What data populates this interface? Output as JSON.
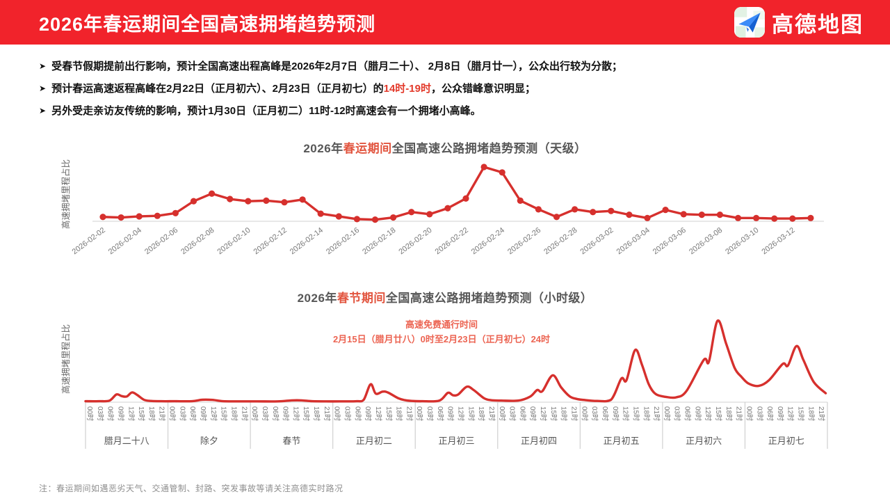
{
  "header": {
    "title": "2026年春运期间全国高速拥堵趋势预测",
    "brand": "高德地图"
  },
  "bullets": {
    "marker": "➤",
    "items": [
      {
        "pre": "受春节假期提前出行影响，预计全国高速出程高峰是2026年2月7日（腊月二十）、 2月8日（腊月廿一），公众出行较为分散；",
        "red": "",
        "post": ""
      },
      {
        "pre": "预计春运高速返程高峰在2月22日（正月初六）、2月23日（正月初七）的",
        "red": "14时-19时",
        "post": "，公众错峰意识明显；"
      },
      {
        "pre": "另外受走亲访友传统的影响，预计1月30日（正月初二）11时-12时高速会有一个拥堵小高峰。",
        "red": "",
        "post": ""
      }
    ]
  },
  "footer": {
    "note": "注：春运期间如遇恶劣天气、交通管制、封路、突发事故等请关注高德实时路况"
  },
  "colors": {
    "header_red": "#f1232b",
    "line_red": "#d6302d",
    "title_red": "#e2553f",
    "annotation_red": "#ec6452",
    "axis_gray": "#d9d9d9",
    "tick_gray": "#777777",
    "day_label_gray": "#555555"
  },
  "chart_data": [
    {
      "type": "line",
      "title_prefix": "2026年",
      "title_red": "春运期间",
      "title_suffix": "全国高速公路拥堵趋势预测（天级）",
      "ylabel": "高速拥堵里程占比",
      "y_axis_ticks": "none",
      "x_tick_every": 2,
      "ylim": [
        0,
        110
      ],
      "grid": false,
      "marker": "dot",
      "x": [
        "2026-02-02",
        "2026-02-03",
        "2026-02-04",
        "2026-02-05",
        "2026-02-06",
        "2026-02-07",
        "2026-02-08",
        "2026-02-09",
        "2026-02-10",
        "2026-02-11",
        "2026-02-12",
        "2026-02-13",
        "2026-02-14",
        "2026-02-15",
        "2026-02-16",
        "2026-02-17",
        "2026-02-18",
        "2026-02-19",
        "2026-02-20",
        "2026-02-21",
        "2026-02-22",
        "2026-02-23",
        "2026-02-24",
        "2026-02-25",
        "2026-02-26",
        "2026-02-27",
        "2026-02-28",
        "2026-03-01",
        "2026-03-02",
        "2026-03-03",
        "2026-03-04",
        "2026-03-05",
        "2026-03-06",
        "2026-03-07",
        "2026-03-08",
        "2026-03-09",
        "2026-03-10",
        "2026-03-11",
        "2026-03-12",
        "2026-03-13"
      ],
      "values": [
        8,
        7,
        9,
        10,
        15,
        37,
        51,
        41,
        37,
        38,
        35,
        40,
        14,
        9,
        4,
        3,
        7,
        17,
        13,
        24,
        42,
        100,
        90,
        38,
        22,
        8,
        22,
        17,
        19,
        12,
        6,
        21,
        13,
        12,
        12,
        6,
        6,
        5,
        5,
        6
      ]
    },
    {
      "type": "line-smooth",
      "title_prefix": "2026年",
      "title_red": "春节期间",
      "title_suffix": "全国高速公路拥堵趋势预测（小时级）",
      "ylabel": "高速拥堵里程占比",
      "y_axis_ticks": "none",
      "ylim": [
        0,
        1.1
      ],
      "grid": false,
      "annotation": {
        "line1": "高速免费通行时间",
        "line2": "2月15日（腊月廿八）0时至2月23日（正月初七）24时"
      },
      "days": [
        "腊月二十八",
        "除夕",
        "春节",
        "正月初二",
        "正月初三",
        "正月初四",
        "正月初五",
        "正月初六",
        "正月初七"
      ],
      "hour_ticks": [
        "00时",
        "03时",
        "06时",
        "09时",
        "12时",
        "15时",
        "18时",
        "21时"
      ],
      "points": [
        [
          0,
          0.012
        ],
        [
          4,
          0.012
        ],
        [
          7,
          0.02
        ],
        [
          9,
          0.095
        ],
        [
          10.5,
          0.075
        ],
        [
          12,
          0.07
        ],
        [
          13.5,
          0.12
        ],
        [
          15,
          0.09
        ],
        [
          17,
          0.03
        ],
        [
          19,
          0.015
        ],
        [
          22,
          0.012
        ],
        [
          26,
          0.012
        ],
        [
          31,
          0.012
        ],
        [
          34,
          0.03
        ],
        [
          37,
          0.028
        ],
        [
          40,
          0.012
        ],
        [
          44,
          0.01
        ],
        [
          50,
          0.01
        ],
        [
          56,
          0.01
        ],
        [
          60,
          0.022
        ],
        [
          63,
          0.022
        ],
        [
          66,
          0.012
        ],
        [
          70,
          0.01
        ],
        [
          74,
          0.01
        ],
        [
          79,
          0.012
        ],
        [
          81,
          0.03
        ],
        [
          83,
          0.22
        ],
        [
          84.5,
          0.105
        ],
        [
          86.5,
          0.13
        ],
        [
          88,
          0.12
        ],
        [
          91,
          0.05
        ],
        [
          93,
          0.025
        ],
        [
          95,
          0.015
        ],
        [
          98,
          0.012
        ],
        [
          103,
          0.02
        ],
        [
          105.5,
          0.115
        ],
        [
          107,
          0.085
        ],
        [
          108.5,
          0.095
        ],
        [
          111,
          0.19
        ],
        [
          113,
          0.15
        ],
        [
          116,
          0.05
        ],
        [
          118,
          0.025
        ],
        [
          121,
          0.02
        ],
        [
          126,
          0.02
        ],
        [
          129.5,
          0.07
        ],
        [
          131.5,
          0.15
        ],
        [
          133,
          0.135
        ],
        [
          136,
          0.33
        ],
        [
          138.5,
          0.18
        ],
        [
          141,
          0.07
        ],
        [
          143,
          0.04
        ],
        [
          145,
          0.028
        ],
        [
          149,
          0.015
        ],
        [
          153,
          0.03
        ],
        [
          156,
          0.29
        ],
        [
          157.5,
          0.27
        ],
        [
          160,
          0.64
        ],
        [
          162,
          0.46
        ],
        [
          164,
          0.22
        ],
        [
          166,
          0.1
        ],
        [
          169,
          0.065
        ],
        [
          172,
          0.06
        ],
        [
          175,
          0.14
        ],
        [
          180,
          0.52
        ],
        [
          181.5,
          0.5
        ],
        [
          184,
          1.0
        ],
        [
          186.5,
          0.72
        ],
        [
          189,
          0.42
        ],
        [
          191,
          0.31
        ],
        [
          193,
          0.23
        ],
        [
          196,
          0.2
        ],
        [
          199,
          0.27
        ],
        [
          203,
          0.47
        ],
        [
          204.5,
          0.45
        ],
        [
          207,
          0.69
        ],
        [
          209,
          0.52
        ],
        [
          212,
          0.25
        ],
        [
          215.5,
          0.11
        ]
      ]
    }
  ]
}
